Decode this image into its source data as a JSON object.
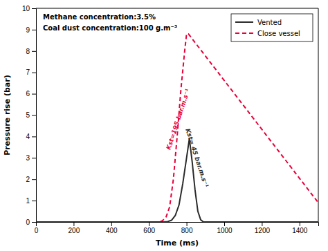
{
  "chart_data": {
    "type": "line",
    "title": "Methane concentration:3.5%",
    "subtitle": "Coal dust concentration:100 g.m⁻³",
    "x_label": "Time (ms)",
    "y_label": "Pressure rise (bar)",
    "xlim": [
      0,
      1500
    ],
    "ylim": [
      0,
      10
    ],
    "xticks": [
      0,
      200,
      400,
      600,
      800,
      1000,
      1200,
      1400
    ],
    "yticks": [
      0,
      1,
      2,
      3,
      4,
      5,
      6,
      7,
      8,
      9,
      10
    ],
    "grid": false,
    "legend": "upper right",
    "series": [
      {
        "name": "Vented",
        "color": "#2b2b2b",
        "line_style": "solid",
        "x": [
          0,
          680,
          700,
          720,
          740,
          760,
          780,
          800,
          815,
          830,
          845,
          860,
          875,
          890,
          900,
          1500
        ],
        "values": [
          0,
          0,
          0.02,
          0.08,
          0.3,
          0.8,
          1.8,
          3.0,
          3.9,
          2.8,
          1.5,
          0.5,
          0.1,
          0,
          0,
          0
        ]
      },
      {
        "name": "Close vessel",
        "color": "#e8003a",
        "line_style": "dashed",
        "x": [
          0,
          650,
          670,
          690,
          710,
          730,
          750,
          770,
          790,
          800,
          810,
          1500
        ],
        "values": [
          0,
          0,
          0.05,
          0.2,
          0.7,
          2.0,
          4.0,
          6.2,
          8.0,
          8.8,
          8.8,
          0.9
        ]
      }
    ],
    "annotations": [
      {
        "text": "Kst=195 bar.m.s⁻¹",
        "x": 755,
        "y": 4.8,
        "color": "#e8003a"
      },
      {
        "text": "Kst= 45 bar.m.s⁻¹",
        "x": 855,
        "y": 3.0,
        "color": "#2b2b2b"
      }
    ]
  }
}
